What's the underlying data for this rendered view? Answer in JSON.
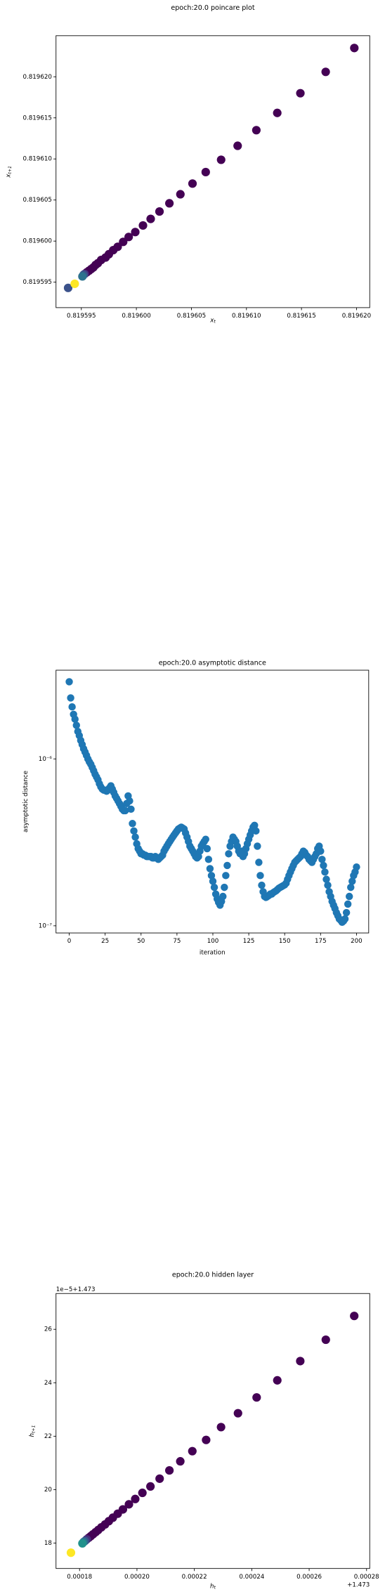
{
  "chart_data": [
    {
      "type": "scatter",
      "title": "epoch:20.0 poincare plot",
      "xlabel": "x",
      "xlabel_sub": "t",
      "ylabel": "x",
      "ylabel_sub": "t+1",
      "x": [
        0.8196198,
        0.8196172,
        0.8196149,
        0.8196128,
        0.8196109,
        0.8196092,
        0.8196077,
        0.8196063,
        0.8196051,
        0.819604,
        0.819603,
        0.8196021,
        0.8196013,
        0.8196006,
        0.8195999,
        0.8195993,
        0.8195988,
        0.8195983,
        0.8195979,
        0.8195975,
        0.8195972,
        0.8195968,
        0.8195965,
        0.8195963,
        0.8195961,
        0.8195959,
        0.8195957,
        0.8195955,
        0.8195953,
        0.8195952,
        0.8195951,
        0.8195938,
        0.8195944
      ],
      "values": [
        0.8196235,
        0.8196206,
        0.819618,
        0.8196156,
        0.8196135,
        0.8196116,
        0.8196099,
        0.8196084,
        0.819607,
        0.8196057,
        0.8196046,
        0.8196036,
        0.8196027,
        0.8196019,
        0.8196011,
        0.8196005,
        0.8195999,
        0.8195993,
        0.8195989,
        0.8195984,
        0.819598,
        0.8195977,
        0.8195973,
        0.8195971,
        0.8195968,
        0.8195966,
        0.8195964,
        0.8195962,
        0.819596,
        0.8195959,
        0.8195957,
        0.8195943,
        0.8195948
      ],
      "colors": [
        "#440154",
        "#440154",
        "#440154",
        "#440154",
        "#440154",
        "#440154",
        "#440154",
        "#440154",
        "#440154",
        "#440154",
        "#440154",
        "#440154",
        "#440154",
        "#440154",
        "#440154",
        "#440154",
        "#440154",
        "#440154",
        "#440154",
        "#440154",
        "#440154",
        "#440154",
        "#440154",
        "#440154",
        "#440154",
        "#440154",
        "#440154",
        "#440154",
        "#472d7b",
        "#3b528b",
        "#2c728e",
        "#3b528b",
        "#fde725"
      ],
      "xlim": [
        0.8195927,
        0.8196212
      ],
      "ylim": [
        0.8195919,
        0.819625
      ],
      "xticks": [
        0.819595,
        {
          "value": 0.8196,
          "label": "0.819600"
        },
        0.819605,
        {
          "value": 0.81961,
          "label": "0.819610"
        },
        0.819615,
        {
          "value": 0.81962,
          "label": "0.819620"
        }
      ],
      "yticks": [
        0.819595,
        {
          "value": 0.8196,
          "label": "0.819600"
        },
        0.819605,
        {
          "value": 0.81961,
          "label": "0.819610"
        },
        0.819615,
        {
          "value": 0.81962,
          "label": "0.819620"
        }
      ]
    },
    {
      "type": "scatter",
      "title": "epoch:20.0 asymptotic distance",
      "xlabel": "iteration",
      "ylabel": "asymptotic distance",
      "log_y": true,
      "color": "#1f77b4",
      "x": [
        0,
        1,
        2,
        3,
        4,
        5,
        6,
        7,
        8,
        9,
        10,
        11,
        12,
        13,
        14,
        15,
        16,
        17,
        18,
        19,
        20,
        21,
        22,
        23,
        24,
        25,
        26,
        27,
        28,
        29,
        30,
        31,
        32,
        33,
        34,
        35,
        36,
        37,
        38,
        39,
        40,
        41,
        42,
        43,
        44,
        45,
        46,
        47,
        48,
        49,
        50,
        51,
        52,
        53,
        54,
        55,
        56,
        57,
        58,
        59,
        60,
        61,
        62,
        63,
        64,
        65,
        66,
        67,
        68,
        69,
        70,
        71,
        72,
        73,
        74,
        75,
        76,
        77,
        78,
        79,
        80,
        81,
        82,
        83,
        84,
        85,
        86,
        87,
        88,
        89,
        90,
        91,
        92,
        93,
        94,
        95,
        96,
        97,
        98,
        99,
        100,
        101,
        102,
        103,
        104,
        105,
        106,
        107,
        108,
        109,
        110,
        111,
        112,
        113,
        114,
        115,
        116,
        117,
        118,
        119,
        120,
        121,
        122,
        123,
        124,
        125,
        126,
        127,
        128,
        129,
        130,
        131,
        132,
        133,
        134,
        135,
        136,
        137,
        138,
        139,
        140,
        141,
        142,
        143,
        144,
        145,
        146,
        147,
        148,
        149,
        150,
        151,
        152,
        153,
        154,
        155,
        156,
        157,
        158,
        159,
        160,
        161,
        162,
        163,
        164,
        165,
        166,
        167,
        168,
        169,
        170,
        171,
        172,
        173,
        174,
        175,
        176,
        177,
        178,
        179,
        180,
        181,
        182,
        183,
        184,
        185,
        186,
        187,
        188,
        189,
        190,
        191,
        192,
        193,
        194,
        195,
        196,
        197,
        198,
        199,
        200
      ],
      "values": [
        2.9e-06,
        2.32e-06,
        2.05e-06,
        1.85e-06,
        1.73e-06,
        1.59e-06,
        1.46e-06,
        1.38e-06,
        1.29e-06,
        1.22e-06,
        1.15e-06,
        1.1e-06,
        1.05e-06,
        1e-06,
        9.6e-07,
        9.3e-07,
        8.9e-07,
        8.5e-07,
        8.1e-07,
        7.8e-07,
        7.5e-07,
        7.1e-07,
        6.8e-07,
        6.6e-07,
        6.5e-07,
        6.5e-07,
        6.4e-07,
        6.5e-07,
        6.7e-07,
        6.9e-07,
        6.6e-07,
        6.3e-07,
        6e-07,
        5.8e-07,
        5.6e-07,
        5.4e-07,
        5.2e-07,
        5e-07,
        4.9e-07,
        4.9e-07,
        5.4e-07,
        6e-07,
        5.6e-07,
        5e-07,
        4.1e-07,
        3.7e-07,
        3.4e-07,
        3.1e-07,
        2.9e-07,
        2.8e-07,
        2.7e-07,
        2.7e-07,
        2.65e-07,
        2.65e-07,
        2.6e-07,
        2.6e-07,
        2.6e-07,
        2.6e-07,
        2.55e-07,
        2.55e-07,
        2.6e-07,
        2.55e-07,
        2.5e-07,
        2.55e-07,
        2.6e-07,
        2.65e-07,
        2.8e-07,
        2.9e-07,
        3e-07,
        3.1e-07,
        3.2e-07,
        3.3e-07,
        3.4e-07,
        3.5e-07,
        3.6e-07,
        3.7e-07,
        3.8e-07,
        3.85e-07,
        3.9e-07,
        3.85e-07,
        3.8e-07,
        3.6e-07,
        3.4e-07,
        3.2e-07,
        3e-07,
        2.9e-07,
        2.8e-07,
        2.7e-07,
        2.6e-07,
        2.55e-07,
        2.6e-07,
        2.8e-07,
        3e-07,
        3.1e-07,
        3.2e-07,
        3.3e-07,
        2.9e-07,
        2.5e-07,
        2.2e-07,
        2e-07,
        1.85e-07,
        1.7e-07,
        1.55e-07,
        1.45e-07,
        1.38e-07,
        1.33e-07,
        1.4e-07,
        1.5e-07,
        1.7e-07,
        2e-07,
        2.3e-07,
        2.7e-07,
        3e-07,
        3.2e-07,
        3.4e-07,
        3.3e-07,
        3.2e-07,
        3e-07,
        2.8e-07,
        2.7e-07,
        2.8e-07,
        2.6e-07,
        2.7e-07,
        2.9e-07,
        3.1e-07,
        3.3e-07,
        3.5e-07,
        3.7e-07,
        3.9e-07,
        4e-07,
        3.7e-07,
        3e-07,
        2.4e-07,
        2e-07,
        1.75e-07,
        1.6e-07,
        1.5e-07,
        1.48e-07,
        1.5e-07,
        1.52e-07,
        1.55e-07,
        1.55e-07,
        1.58e-07,
        1.6e-07,
        1.62e-07,
        1.65e-07,
        1.68e-07,
        1.7e-07,
        1.72e-07,
        1.74e-07,
        1.76e-07,
        1.8e-07,
        1.9e-07,
        2e-07,
        2.1e-07,
        2.2e-07,
        2.3e-07,
        2.4e-07,
        2.45e-07,
        2.5e-07,
        2.55e-07,
        2.6e-07,
        2.7e-07,
        2.8e-07,
        2.75e-07,
        2.65e-07,
        2.6e-07,
        2.5e-07,
        2.45e-07,
        2.4e-07,
        2.5e-07,
        2.6e-07,
        2.7e-07,
        2.9e-07,
        3e-07,
        2.8e-07,
        2.5e-07,
        2.3e-07,
        2.1e-07,
        1.9e-07,
        1.75e-07,
        1.6e-07,
        1.5e-07,
        1.4e-07,
        1.33e-07,
        1.27e-07,
        1.2e-07,
        1.15e-07,
        1.1e-07,
        1.08e-07,
        1.05e-07,
        1.07e-07,
        1.1e-07,
        1.2e-07,
        1.35e-07,
        1.5e-07,
        1.7e-07,
        1.85e-07,
        2e-07,
        2.1e-07,
        2.25e-07
      ],
      "xlim": [
        -9.2,
        208.5
      ],
      "ylim": [
        9.06e-08,
        3.4e-06
      ],
      "xticks": [
        0,
        25,
        50,
        75,
        100,
        125,
        150,
        175,
        200
      ],
      "yticks": [
        {
          "value": 1e-06,
          "label": "10⁻⁶"
        },
        {
          "value": 1e-07,
          "label": "10⁻⁷"
        }
      ]
    },
    {
      "type": "scatter",
      "title": "epoch:20.0 hidden layer",
      "xlabel": "h",
      "xlabel_sub": "t",
      "ylabel": "h",
      "ylabel_sub": "t+1",
      "x_offset": "+1.473",
      "y_offset": "1e−5+1.473",
      "x": [
        0.0002757,
        0.0002658,
        0.0002569,
        0.0002489,
        0.0002417,
        0.0002352,
        0.0002293,
        0.0002241,
        0.0002193,
        0.0002151,
        0.0002113,
        0.0002079,
        0.0002047,
        0.0002019,
        0.0001994,
        0.0001972,
        0.0001951,
        0.0001933,
        0.0001916,
        0.0001902,
        0.0001889,
        0.0001876,
        0.0001865,
        0.0001856,
        0.0001847,
        0.0001839,
        0.0001832,
        0.0001825,
        0.0001819,
        0.0001814,
        0.000181,
        0.000177
      ],
      "values": [
        26.5,
        25.61,
        24.81,
        24.09,
        23.45,
        22.86,
        22.34,
        21.86,
        21.44,
        21.06,
        20.72,
        20.41,
        20.12,
        19.88,
        19.65,
        19.45,
        19.26,
        19.1,
        18.95,
        18.82,
        18.7,
        18.59,
        18.49,
        18.41,
        18.33,
        18.26,
        18.2,
        18.14,
        18.08,
        18.04,
        17.99,
        17.64
      ],
      "colors": [
        "#440154",
        "#440154",
        "#440154",
        "#440154",
        "#440154",
        "#440154",
        "#440154",
        "#440154",
        "#440154",
        "#440154",
        "#440154",
        "#440154",
        "#440154",
        "#440154",
        "#440154",
        "#440154",
        "#440154",
        "#440154",
        "#440154",
        "#440154",
        "#440154",
        "#440154",
        "#440154",
        "#440154",
        "#440154",
        "#440154",
        "#440154",
        "#472d7b",
        "#3b528b",
        "#2c728e",
        "#21918c",
        "#fde725"
      ],
      "xlim": [
        0.0001718,
        0.0002811
      ],
      "ylim": [
        17.05,
        27.34
      ],
      "xticks": [
        0.00018,
        {
          "value": 0.0002,
          "label": "0.00020"
        },
        0.00022,
        0.00024,
        0.00026,
        0.00028
      ],
      "yticks": [
        18,
        20,
        22,
        24,
        26
      ]
    }
  ]
}
